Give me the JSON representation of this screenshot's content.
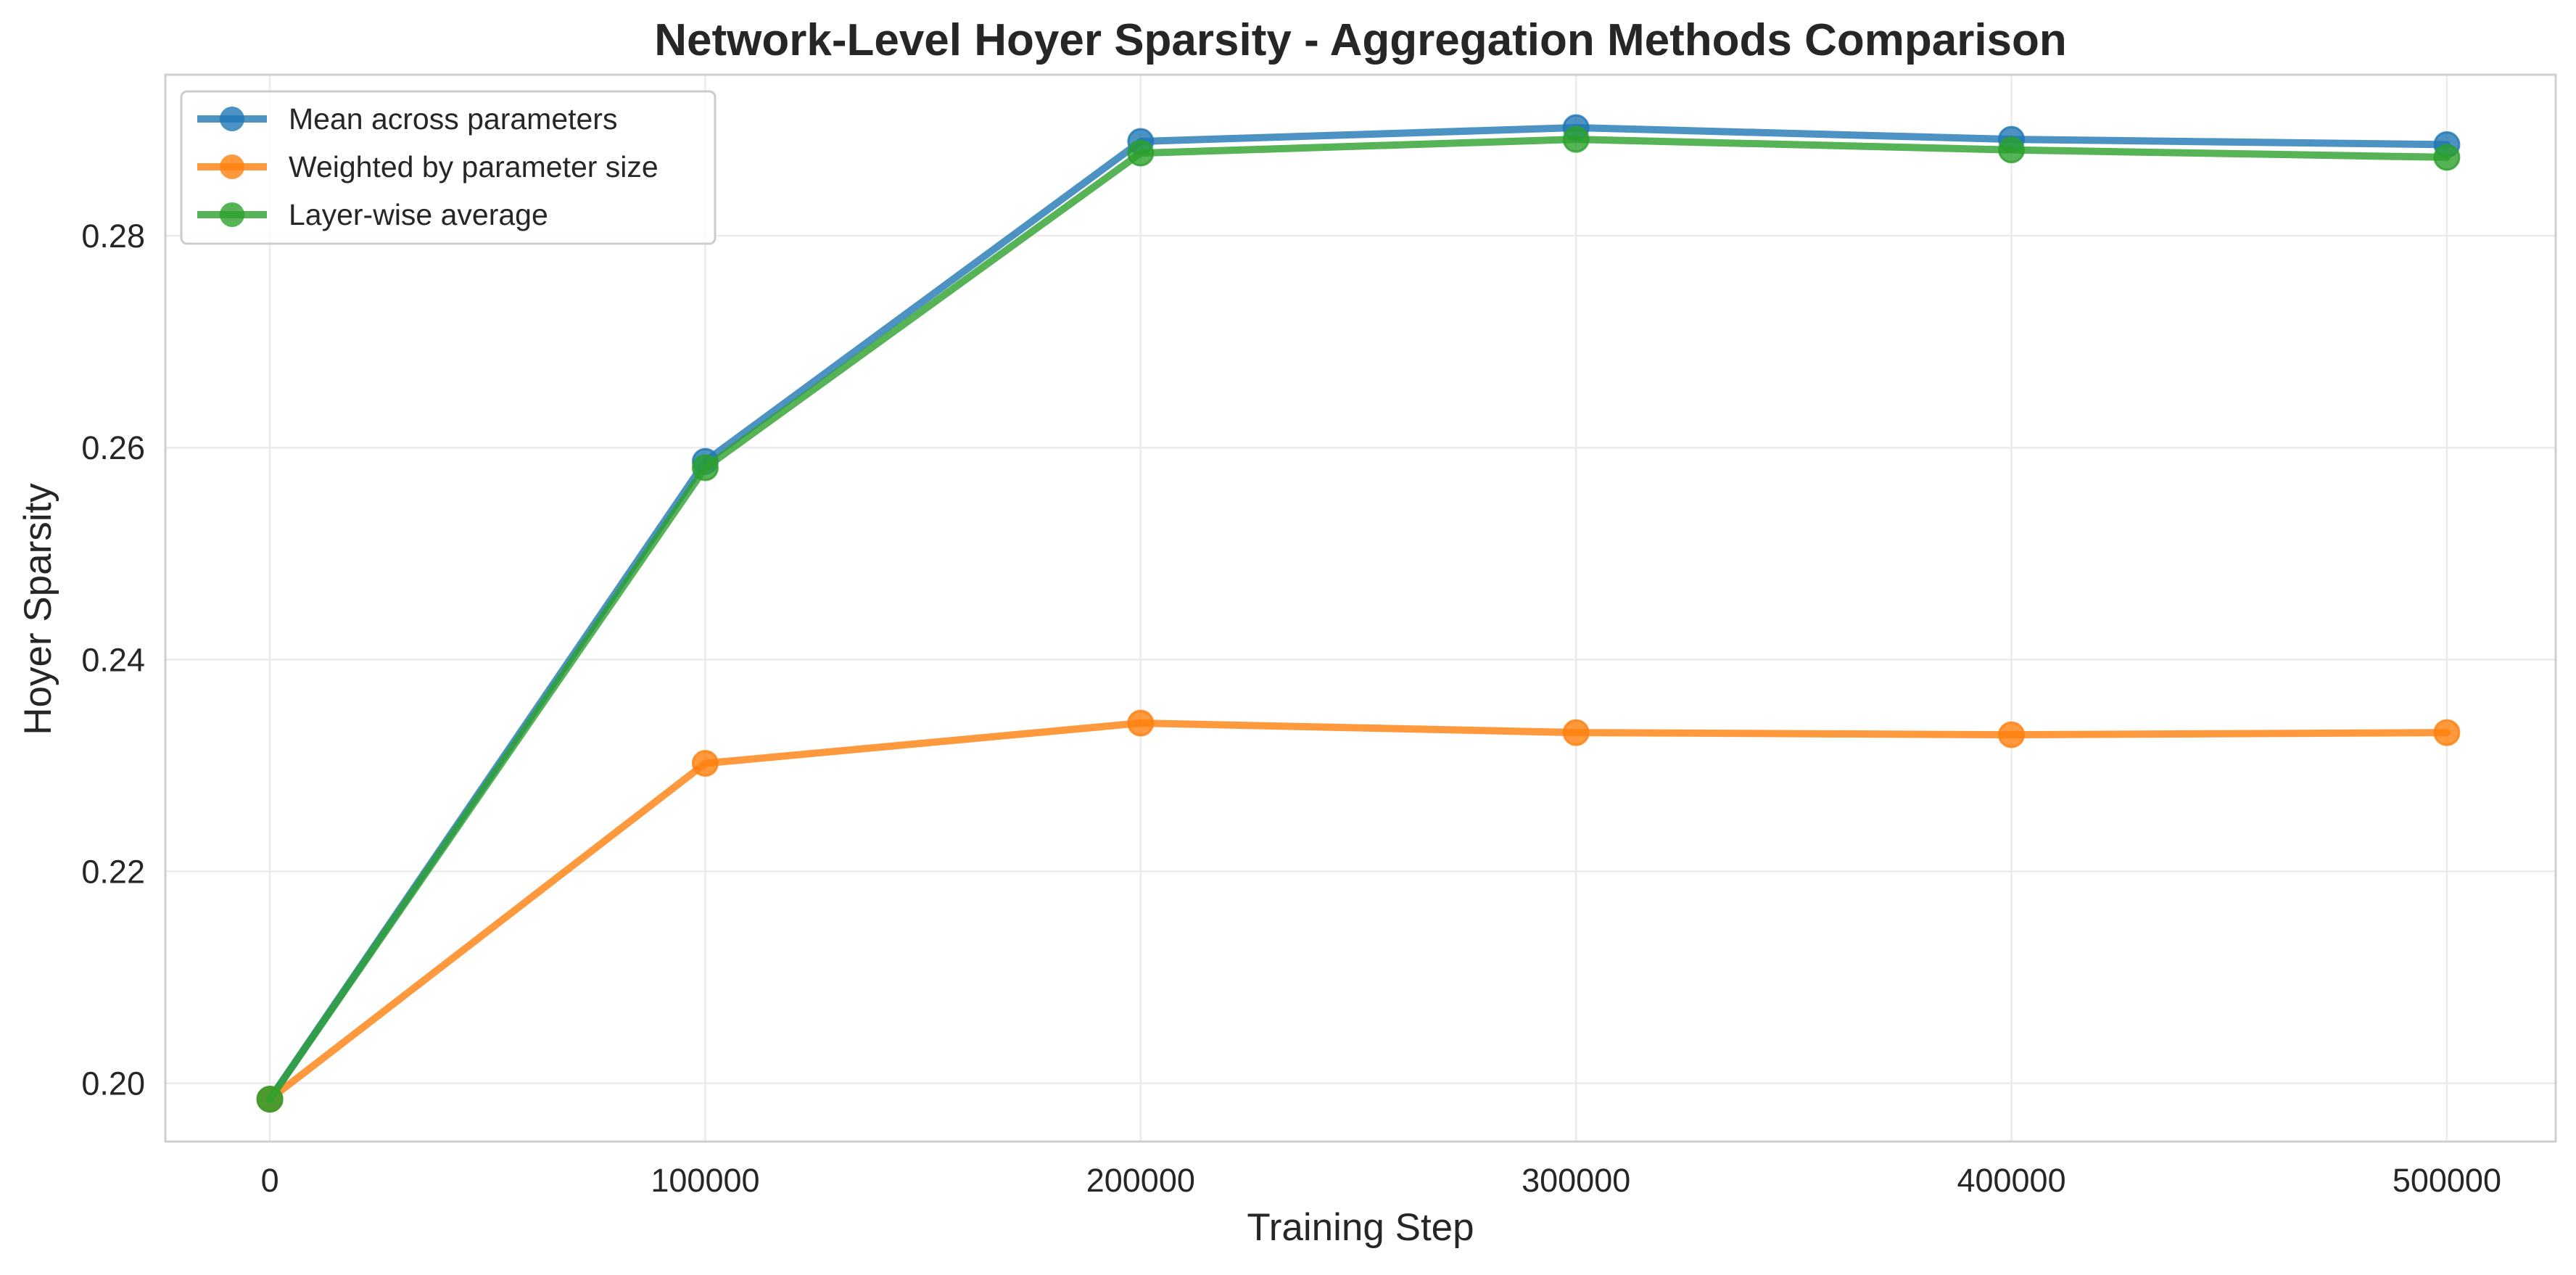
{
  "chart_data": {
    "type": "line",
    "title": "Network-Level Hoyer Sparsity - Aggregation Methods Comparison",
    "xlabel": "Training Step",
    "ylabel": "Hoyer Sparsity",
    "x": [
      0,
      100000,
      200000,
      300000,
      400000,
      500000
    ],
    "xticks": [
      "0",
      "100000",
      "200000",
      "300000",
      "400000",
      "500000"
    ],
    "yticks": [
      "0.20",
      "0.22",
      "0.24",
      "0.26",
      "0.28"
    ],
    "xlim": [
      -24000,
      525000
    ],
    "ylim": [
      0.1945,
      0.2952
    ],
    "grid": true,
    "legend_position": "top-left",
    "series": [
      {
        "name": "Mean across parameters",
        "color": "#1f77b4",
        "values": [
          0.1985,
          0.2587,
          0.2889,
          0.2902,
          0.2891,
          0.2886
        ]
      },
      {
        "name": "Weighted by parameter size",
        "color": "#ff7f0e",
        "values": [
          0.1985,
          0.2302,
          0.234,
          0.2331,
          0.2329,
          0.2331
        ]
      },
      {
        "name": "Layer-wise average",
        "color": "#2ca02c",
        "values": [
          0.1985,
          0.2581,
          0.2878,
          0.2891,
          0.2881,
          0.2874
        ]
      }
    ]
  }
}
